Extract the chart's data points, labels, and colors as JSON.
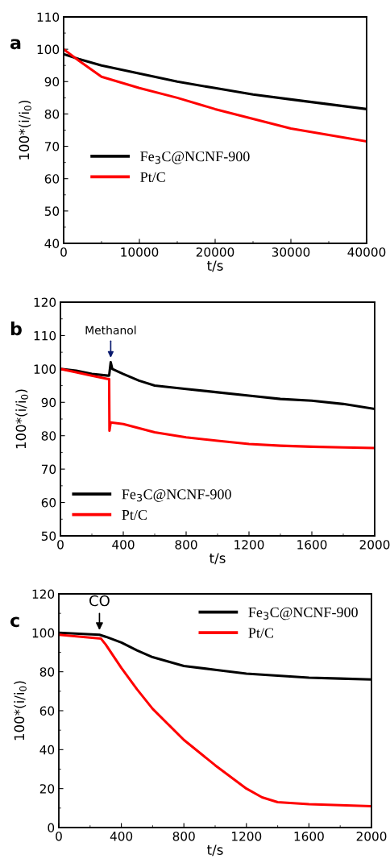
{
  "chart_data": [
    {
      "type": "line",
      "title": "a",
      "xlabel": "t/s",
      "ylabel": "100*(i/i$_{0}$)",
      "xlim": [
        0,
        40000
      ],
      "ylim": [
        40,
        110
      ],
      "xticks": [
        0,
        10000,
        20000,
        30000,
        40000
      ],
      "yticks": [
        40,
        50,
        60,
        70,
        80,
        90,
        100,
        110
      ],
      "grid": false,
      "legend": "center left",
      "marker": "none",
      "line_style": "solid",
      "series": [
        {
          "name": "Fe$_{3}$C@NCNF-900",
          "color": "#000000",
          "x": [
            0,
            2000,
            5000,
            10000,
            15000,
            20000,
            25000,
            30000,
            35000,
            40000
          ],
          "values": [
            98.5,
            97,
            95,
            92.5,
            90,
            88,
            86,
            84.5,
            83,
            81.5
          ]
        },
        {
          "name": "Pt/C",
          "color": "#ff0000",
          "x": [
            0,
            2000,
            5000,
            10000,
            15000,
            20000,
            25000,
            30000,
            35000,
            40000
          ],
          "values": [
            100,
            96.5,
            91.5,
            88,
            85,
            81.5,
            78.5,
            75.5,
            73.5,
            71.5
          ]
        }
      ]
    },
    {
      "type": "line",
      "title": "b",
      "xlabel": "t/s",
      "ylabel": "100*(i/i$_{0}$)",
      "xlim": [
        0,
        2000
      ],
      "ylim": [
        50,
        120
      ],
      "xticks": [
        0,
        400,
        800,
        1200,
        1600,
        2000
      ],
      "yticks": [
        50,
        60,
        70,
        80,
        90,
        100,
        110,
        120
      ],
      "grid": false,
      "legend": "lower left",
      "marker": "none",
      "line_style": "solid",
      "annotations": [
        {
          "text": "Methanol",
          "x": 320,
          "y": 102
        }
      ],
      "series": [
        {
          "name": "Fe$_{3}$C@NCNF-900",
          "color": "#000000",
          "x": [
            0,
            100,
            200,
            300,
            310,
            320,
            330,
            400,
            500,
            600,
            800,
            1000,
            1200,
            1400,
            1600,
            1800,
            2000
          ],
          "values": [
            100,
            99.5,
            98.5,
            98,
            98,
            102,
            100,
            98.5,
            96.5,
            95,
            94,
            93,
            92,
            91,
            90.5,
            89.5,
            88
          ]
        },
        {
          "name": "Pt/C",
          "color": "#ff0000",
          "x": [
            0,
            100,
            200,
            300,
            310,
            312,
            320,
            400,
            600,
            800,
            1000,
            1200,
            1400,
            1600,
            1800,
            2000
          ],
          "values": [
            100,
            99,
            98,
            97,
            97,
            81.5,
            84,
            83.5,
            81,
            79.5,
            78.5,
            77.5,
            77,
            76.7,
            76.5,
            76.3
          ]
        }
      ]
    },
    {
      "type": "line",
      "title": "c",
      "xlabel": "t/s",
      "ylabel": "100*(i/i$_{0}$)",
      "xlim": [
        0,
        2000
      ],
      "ylim": [
        0,
        120
      ],
      "xticks": [
        0,
        400,
        800,
        1200,
        1600,
        2000
      ],
      "yticks": [
        0,
        20,
        40,
        60,
        80,
        100,
        120
      ],
      "grid": false,
      "legend": "upper right",
      "marker": "none",
      "line_style": "solid",
      "annotations": [
        {
          "text": "CO",
          "x": 260,
          "y": 99
        }
      ],
      "series": [
        {
          "name": "Fe$_{3}$C@NCNF-900",
          "color": "#000000",
          "x": [
            0,
            260,
            300,
            400,
            500,
            600,
            800,
            1000,
            1200,
            1400,
            1600,
            1800,
            2000
          ],
          "values": [
            100,
            99,
            98,
            95,
            91,
            87.5,
            83,
            81,
            79,
            78,
            77,
            76.5,
            76
          ]
        },
        {
          "name": "Pt/C",
          "color": "#ff0000",
          "x": [
            0,
            270,
            300,
            400,
            500,
            600,
            800,
            1000,
            1200,
            1300,
            1400,
            1600,
            1800,
            2000
          ],
          "values": [
            99,
            97,
            94,
            82,
            71,
            61,
            45,
            32,
            20,
            15.5,
            13,
            12,
            11.5,
            11
          ]
        }
      ]
    }
  ]
}
